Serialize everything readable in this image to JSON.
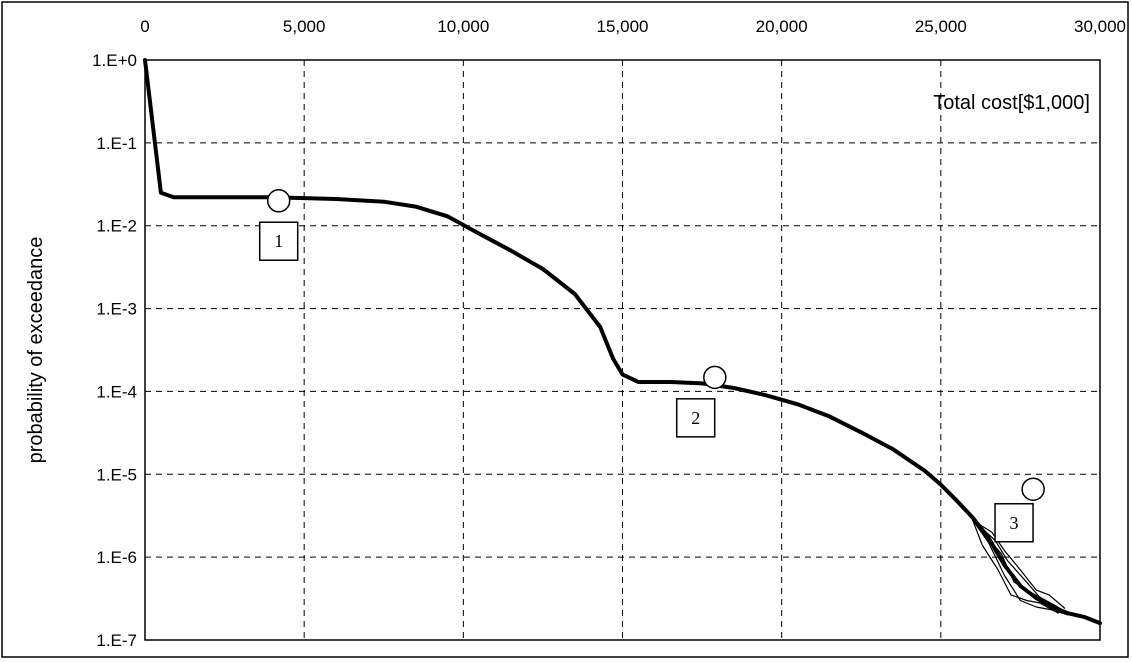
{
  "chart_data": {
    "type": "line",
    "title": "",
    "xlabel": "Total cost[$1,000]",
    "ylabel": "probability of exceedance",
    "x_axis_position": "top",
    "xlim": [
      0,
      30000
    ],
    "ylim": [
      1e-07,
      1
    ],
    "y_scale": "log",
    "grid": true,
    "grid_style": "dashed",
    "x_ticks": [
      0,
      5000,
      10000,
      15000,
      20000,
      25000,
      30000
    ],
    "x_tick_labels": [
      "0",
      "5,000",
      "10,000",
      "15,000",
      "20,000",
      "25,000",
      "30,000"
    ],
    "y_ticks": [
      1,
      0.1,
      0.01,
      0.001,
      0.0001,
      1e-05,
      1e-06,
      1e-07
    ],
    "y_tick_labels": [
      "1.E+0",
      "1.E-1",
      "1.E-2",
      "1.E-3",
      "1.E-4",
      "1.E-5",
      "1.E-6",
      "1.E-7"
    ],
    "series": [
      {
        "values": [
          [
            0,
            1.0
          ],
          [
            500,
            0.025
          ],
          [
            900,
            0.022
          ],
          [
            2000,
            0.022
          ],
          [
            4000,
            0.022
          ],
          [
            6000,
            0.021
          ],
          [
            7500,
            0.0195
          ],
          [
            8500,
            0.017
          ],
          [
            9500,
            0.013
          ],
          [
            10500,
            0.008
          ],
          [
            11500,
            0.005
          ],
          [
            12500,
            0.003
          ],
          [
            13500,
            0.0015
          ],
          [
            14300,
            0.0006
          ],
          [
            14700,
            0.00025
          ],
          [
            15000,
            0.00016
          ],
          [
            15500,
            0.00013
          ],
          [
            16500,
            0.00013
          ],
          [
            17500,
            0.000125
          ],
          [
            18500,
            0.00011
          ],
          [
            19500,
            9e-05
          ],
          [
            20500,
            7e-05
          ],
          [
            21500,
            5e-05
          ],
          [
            22500,
            3.2e-05
          ],
          [
            23500,
            2e-05
          ],
          [
            24500,
            1.1e-05
          ],
          [
            25000,
            7.5e-06
          ],
          [
            25500,
            4.8e-06
          ],
          [
            26000,
            3e-06
          ],
          [
            26500,
            1.7e-06
          ],
          [
            27000,
            8e-07
          ],
          [
            27500,
            4.5e-07
          ],
          [
            28000,
            3.2e-07
          ],
          [
            28500,
            2.5e-07
          ],
          [
            29000,
            2.1e-07
          ],
          [
            29500,
            1.9e-07
          ],
          [
            30000,
            1.6e-07
          ]
        ]
      }
    ],
    "overlay_curves": [
      [
        [
          26000,
          2.8e-06
        ],
        [
          26500,
          1.5e-06
        ],
        [
          27000,
          6e-07
        ],
        [
          27500,
          3e-07
        ],
        [
          28000,
          2.5e-07
        ],
        [
          28500,
          2.3e-07
        ],
        [
          29000,
          2e-07
        ]
      ],
      [
        [
          26000,
          2.8e-06
        ],
        [
          26400,
          1.8e-06
        ],
        [
          26900,
          1.1e-06
        ],
        [
          27300,
          5e-07
        ],
        [
          27800,
          3.8e-07
        ],
        [
          28300,
          3e-07
        ],
        [
          28800,
          2.2e-07
        ]
      ],
      [
        [
          26000,
          2.8e-06
        ],
        [
          26600,
          2e-06
        ],
        [
          27000,
          1.2e-06
        ],
        [
          27500,
          7e-07
        ],
        [
          28000,
          4e-07
        ],
        [
          28400,
          3.5e-07
        ],
        [
          28900,
          2.4e-07
        ]
      ],
      [
        [
          26000,
          2.8e-06
        ],
        [
          26300,
          1.4e-06
        ],
        [
          26800,
          7e-07
        ],
        [
          27200,
          3.5e-07
        ],
        [
          27700,
          3e-07
        ],
        [
          28100,
          2.8e-07
        ],
        [
          28700,
          2.1e-07
        ]
      ],
      [
        [
          26000,
          2.8e-06
        ],
        [
          26700,
          1.6e-06
        ],
        [
          27100,
          9e-07
        ],
        [
          27600,
          5.5e-07
        ],
        [
          28100,
          3.3e-07
        ],
        [
          28600,
          2.6e-07
        ],
        [
          29100,
          2e-07
        ]
      ]
    ],
    "annotations": [
      {
        "label": "1",
        "circle": [
          4200,
          0.02
        ],
        "box": [
          4200,
          0.0065
        ]
      },
      {
        "label": "2",
        "circle": [
          17900,
          0.000148
        ],
        "box": [
          17300,
          4.8e-05
        ]
      },
      {
        "label": "3",
        "circle": [
          27900,
          6.6e-06
        ],
        "box": [
          27300,
          2.6e-06
        ]
      }
    ]
  }
}
